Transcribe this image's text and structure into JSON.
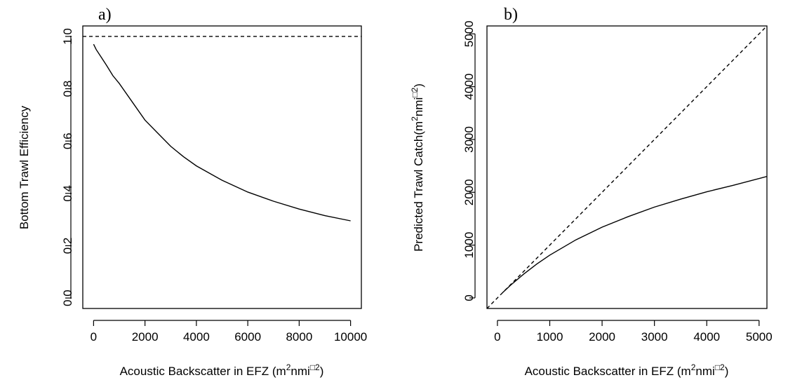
{
  "chart_data": [
    {
      "type": "line",
      "panel_label": "a)",
      "xlabel": {
        "text": "Acoustic Backscatter in EFZ (m",
        "sup1": "2",
        "mid": "nmi",
        "sup2": "□2",
        "end": ")"
      },
      "ylabel": "Bottom Trawl Efficiency",
      "xlim": [
        -420,
        10420
      ],
      "ylim": [
        -0.04,
        1.04
      ],
      "xticks": [
        0,
        2000,
        4000,
        6000,
        8000,
        10000
      ],
      "xtick_labels": [
        "0",
        "2000",
        "4000",
        "6000",
        "8000",
        "10000"
      ],
      "yticks": [
        0.0,
        0.2,
        0.4,
        0.6,
        0.8,
        1.0
      ],
      "ytick_labels": [
        "0.0",
        "0.2",
        "0.4",
        "0.6",
        "0.8",
        "1.0"
      ],
      "grid": false,
      "series": [
        {
          "style": "solid",
          "x": [
            0,
            100,
            300,
            500,
            750,
            1000,
            1500,
            2000,
            2500,
            3000,
            3500,
            4000,
            5000,
            6000,
            7000,
            8000,
            9000,
            10000
          ],
          "y": [
            0.97,
            0.95,
            0.92,
            0.89,
            0.85,
            0.82,
            0.75,
            0.68,
            0.63,
            0.58,
            0.54,
            0.505,
            0.45,
            0.405,
            0.37,
            0.34,
            0.315,
            0.295
          ]
        },
        {
          "style": "dashed",
          "x": [
            -420,
            10420
          ],
          "y": [
            1.0,
            1.0
          ]
        }
      ]
    },
    {
      "type": "line",
      "panel_label": "b)",
      "xlabel": {
        "text": "Acoustic Backscatter in EFZ (m",
        "sup1": "2",
        "mid": "nmi",
        "sup2": "□2",
        "end": ")"
      },
      "ylabel": {
        "text": "Predicted Trawl Catch(m",
        "sup1": "2",
        "mid": "nmi",
        "sup2": "□2",
        "end": ")"
      },
      "xlim": [
        -200,
        5150
      ],
      "ylim": [
        -200,
        5150
      ],
      "xticks": [
        0,
        1000,
        2000,
        3000,
        4000,
        5000
      ],
      "xtick_labels": [
        "0",
        "1000",
        "2000",
        "3000",
        "4000",
        "5000"
      ],
      "yticks": [
        0,
        1000,
        2000,
        3000,
        4000,
        5000
      ],
      "ytick_labels": [
        "0",
        "1000",
        "2000",
        "3000",
        "4000",
        "5000"
      ],
      "grid": false,
      "series": [
        {
          "style": "solid",
          "x": [
            100,
            250,
            500,
            750,
            1000,
            1500,
            2000,
            2500,
            3000,
            3500,
            4000,
            4500,
            5150
          ],
          "y": [
            100,
            240,
            450,
            640,
            810,
            1100,
            1340,
            1540,
            1720,
            1870,
            2010,
            2130,
            2300
          ]
        },
        {
          "style": "dashed",
          "x": [
            -200,
            5150
          ],
          "y": [
            -200,
            5150
          ]
        }
      ]
    }
  ]
}
